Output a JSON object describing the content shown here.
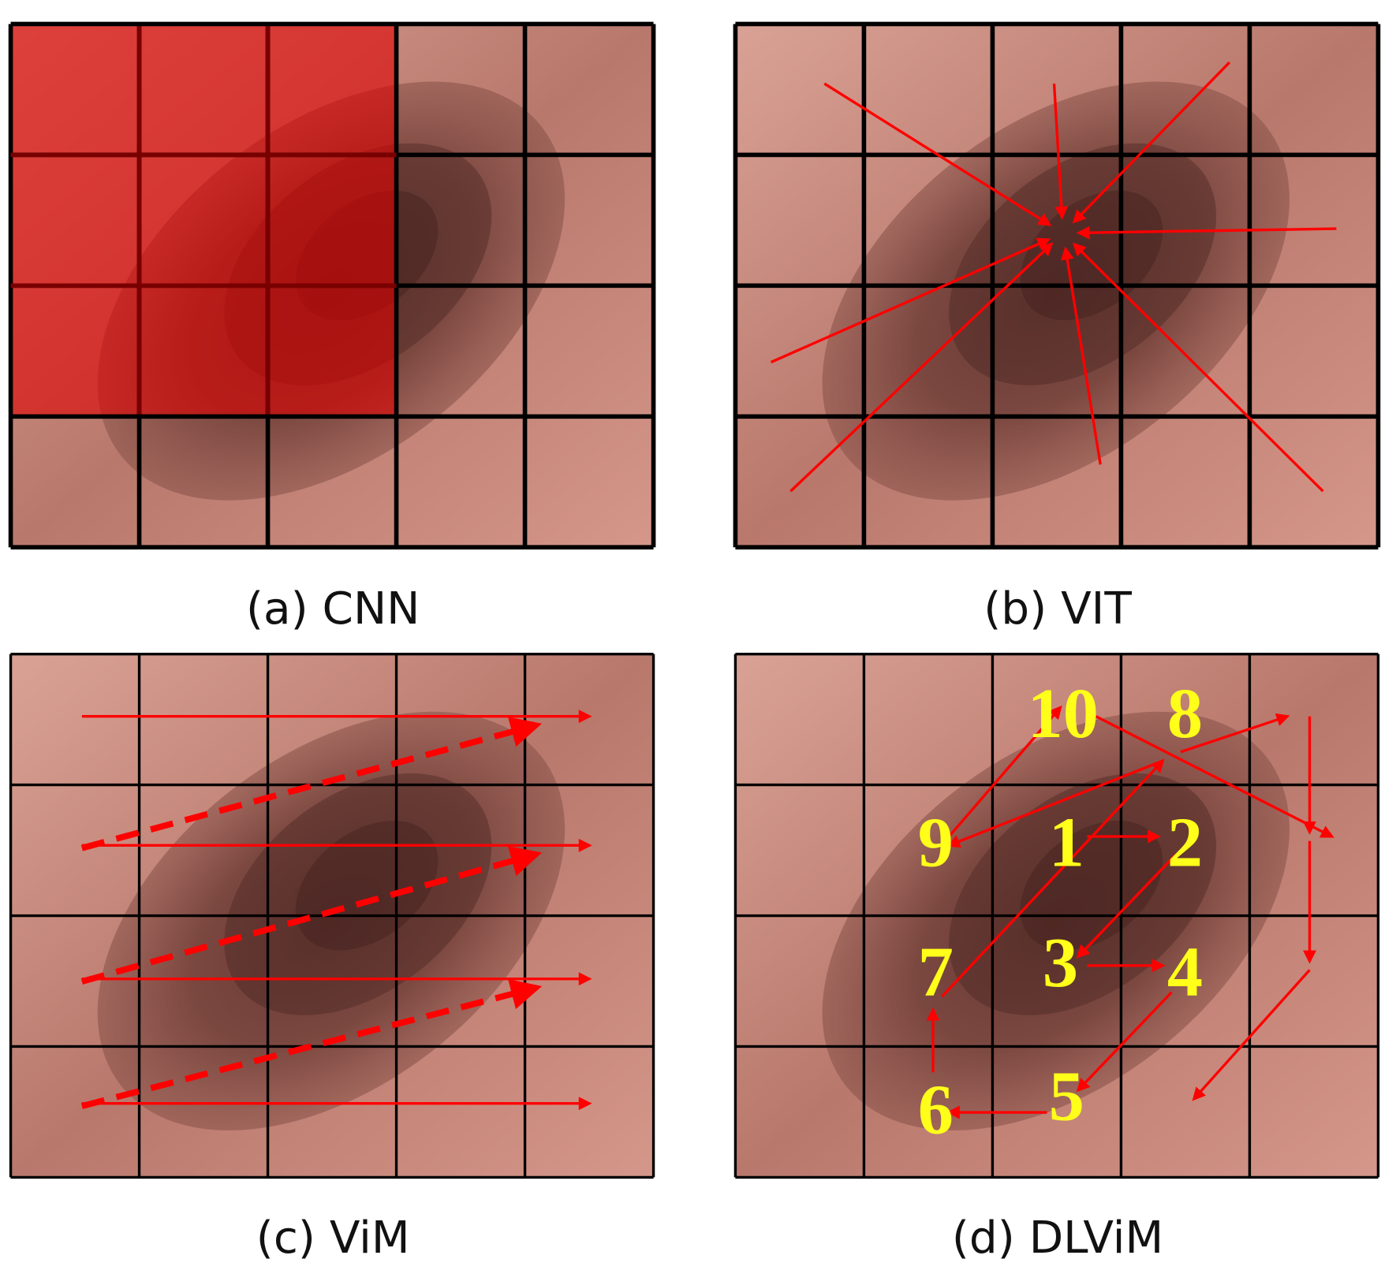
{
  "captions": [
    "(a) CNN",
    "(b) VIT",
    "(c) ViM",
    "(d) DLViM"
  ],
  "order_labels": [
    "1",
    "2",
    "3",
    "4",
    "5",
    "6",
    "7",
    "8",
    "9",
    "10"
  ]
}
